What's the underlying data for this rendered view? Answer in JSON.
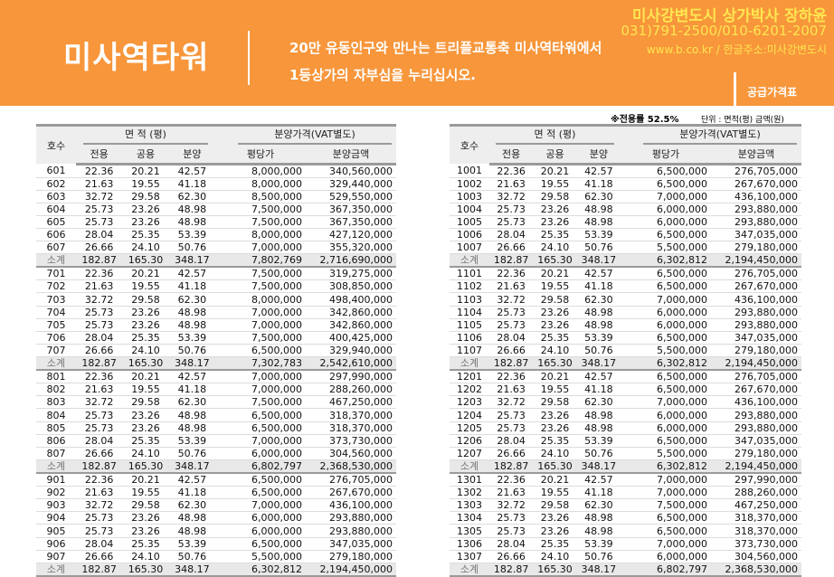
{
  "header": {
    "title": "미사역타워",
    "slogan1": "20만 유동인구와 만나는 트리플교통축 미사역타워에서",
    "slogan2": "1등상가의 자부심을 누리십시오.",
    "agent_name": "미사강변도시 상가박사 장하윤",
    "agent_phone": "031)791-2500/010-6201-2007",
    "agent_url": "www.b.co.kr / 한글주소:미사강변도시",
    "section": "공급가격표"
  },
  "notes": {
    "ratio": "※전용률 52.5%",
    "unit": "단위 : 면적(평) 금액(원)"
  },
  "columns": {
    "unit": "호수",
    "area": "면 적 (평)",
    "price": "분양가격(VAT별도)",
    "exclusive": "전용",
    "common": "공용",
    "sale_area": "분양",
    "per_pyeong": "평당가",
    "amount": "분양금액"
  },
  "areas": [
    [
      "22.36",
      "20.21",
      "42.57"
    ],
    [
      "21.63",
      "19.55",
      "41.18"
    ],
    [
      "32.72",
      "29.58",
      "62.30"
    ],
    [
      "25.73",
      "23.26",
      "48.98"
    ],
    [
      "25.73",
      "23.26",
      "48.98"
    ],
    [
      "28.04",
      "25.35",
      "53.39"
    ],
    [
      "26.66",
      "24.10",
      "50.76"
    ]
  ],
  "subtotal_label": "소계",
  "subtotal_area": [
    "182.87",
    "165.30",
    "348.17"
  ],
  "left_groups": [
    {
      "floor": "6",
      "prices": [
        [
          "8,000,000",
          "340,560,000"
        ],
        [
          "8,000,000",
          "329,440,000"
        ],
        [
          "8,500,000",
          "529,550,000"
        ],
        [
          "7,500,000",
          "367,350,000"
        ],
        [
          "7,500,000",
          "367,350,000"
        ],
        [
          "8,000,000",
          "427,120,000"
        ],
        [
          "7,000,000",
          "355,320,000"
        ]
      ],
      "subtotal": [
        "7,802,769",
        "2,716,690,000"
      ]
    },
    {
      "floor": "7",
      "prices": [
        [
          "7,500,000",
          "319,275,000"
        ],
        [
          "7,500,000",
          "308,850,000"
        ],
        [
          "8,000,000",
          "498,400,000"
        ],
        [
          "7,000,000",
          "342,860,000"
        ],
        [
          "7,000,000",
          "342,860,000"
        ],
        [
          "7,500,000",
          "400,425,000"
        ],
        [
          "6,500,000",
          "329,940,000"
        ]
      ],
      "subtotal": [
        "7,302,783",
        "2,542,610,000"
      ]
    },
    {
      "floor": "8",
      "prices": [
        [
          "7,000,000",
          "297,990,000"
        ],
        [
          "7,000,000",
          "288,260,000"
        ],
        [
          "7,500,000",
          "467,250,000"
        ],
        [
          "6,500,000",
          "318,370,000"
        ],
        [
          "6,500,000",
          "318,370,000"
        ],
        [
          "7,000,000",
          "373,730,000"
        ],
        [
          "6,000,000",
          "304,560,000"
        ]
      ],
      "subtotal": [
        "6,802,797",
        "2,368,530,000"
      ]
    },
    {
      "floor": "9",
      "prices": [
        [
          "6,500,000",
          "276,705,000"
        ],
        [
          "6,500,000",
          "267,670,000"
        ],
        [
          "7,000,000",
          "436,100,000"
        ],
        [
          "6,000,000",
          "293,880,000"
        ],
        [
          "6,000,000",
          "293,880,000"
        ],
        [
          "6,500,000",
          "347,035,000"
        ],
        [
          "5,500,000",
          "279,180,000"
        ]
      ],
      "subtotal": [
        "6,302,812",
        "2,194,450,000"
      ]
    }
  ],
  "right_groups": [
    {
      "floor": "10",
      "prices": [
        [
          "6,500,000",
          "276,705,000"
        ],
        [
          "6,500,000",
          "267,670,000"
        ],
        [
          "7,000,000",
          "436,100,000"
        ],
        [
          "6,000,000",
          "293,880,000"
        ],
        [
          "6,000,000",
          "293,880,000"
        ],
        [
          "6,500,000",
          "347,035,000"
        ],
        [
          "5,500,000",
          "279,180,000"
        ]
      ],
      "subtotal": [
        "6,302,812",
        "2,194,450,000"
      ]
    },
    {
      "floor": "11",
      "prices": [
        [
          "6,500,000",
          "276,705,000"
        ],
        [
          "6,500,000",
          "267,670,000"
        ],
        [
          "7,000,000",
          "436,100,000"
        ],
        [
          "6,000,000",
          "293,880,000"
        ],
        [
          "6,000,000",
          "293,880,000"
        ],
        [
          "6,500,000",
          "347,035,000"
        ],
        [
          "5,500,000",
          "279,180,000"
        ]
      ],
      "subtotal": [
        "6,302,812",
        "2,194,450,000"
      ]
    },
    {
      "floor": "12",
      "prices": [
        [
          "6,500,000",
          "276,705,000"
        ],
        [
          "6,500,000",
          "267,670,000"
        ],
        [
          "7,000,000",
          "436,100,000"
        ],
        [
          "6,000,000",
          "293,880,000"
        ],
        [
          "6,000,000",
          "293,880,000"
        ],
        [
          "6,500,000",
          "347,035,000"
        ],
        [
          "5,500,000",
          "279,180,000"
        ]
      ],
      "subtotal": [
        "6,302,812",
        "2,194,450,000"
      ]
    },
    {
      "floor": "13",
      "prices": [
        [
          "7,000,000",
          "297,990,000"
        ],
        [
          "7,000,000",
          "288,260,000"
        ],
        [
          "7,500,000",
          "467,250,000"
        ],
        [
          "6,500,000",
          "318,370,000"
        ],
        [
          "6,500,000",
          "318,370,000"
        ],
        [
          "7,000,000",
          "373,730,000"
        ],
        [
          "6,000,000",
          "304,560,000"
        ]
      ],
      "subtotal": [
        "6,802,797",
        "2,368,530,000"
      ]
    }
  ]
}
